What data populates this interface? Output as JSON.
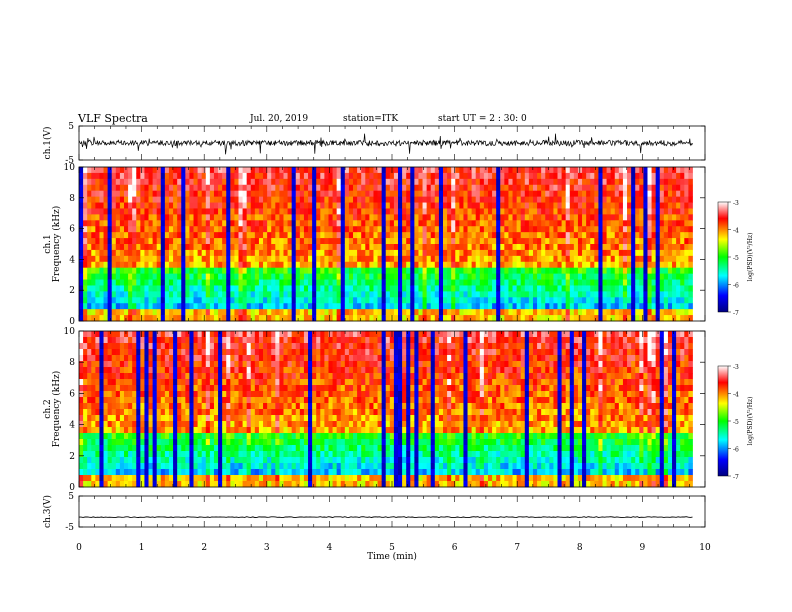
{
  "header": {
    "title": "VLF Spectra",
    "date": "Jul. 20, 2019",
    "station": "station=ITK",
    "start": "start UT = 2 : 30: 0"
  },
  "chart_data": [
    {
      "type": "line",
      "name": "ch1-waveform",
      "ylabel": "ch.1(V)",
      "ylim": [
        -5,
        5
      ],
      "yticks": [
        "5",
        "-5"
      ],
      "xlim": [
        0,
        10
      ],
      "baseline": 0,
      "data_extent_min": 9.8
    },
    {
      "type": "heatmap",
      "name": "ch1-spectrogram",
      "ylabel": "ch.1\nFrequency (kHz)",
      "ylabel_line1": "ch.1",
      "ylabel_line2": "Frequency (kHz)",
      "ylim": [
        0,
        10
      ],
      "yticks": [
        "0",
        "2",
        "4",
        "6",
        "8",
        "10"
      ],
      "xlim": [
        0,
        10
      ],
      "colorbar": {
        "label": "log(PSD)(V²/Hz)",
        "range": [
          -7,
          -3
        ],
        "ticks": [
          "-3",
          "-4",
          "-5",
          "-6",
          "-7"
        ],
        "colors": [
          "#000080",
          "#0000ff",
          "#00ffff",
          "#00ff00",
          "#ffff00",
          "#ff0000",
          "#ffffff"
        ]
      }
    },
    {
      "type": "heatmap",
      "name": "ch2-spectrogram",
      "ylabel_line1": "ch.2",
      "ylabel_line2": "Frequency (kHz)",
      "ylim": [
        0,
        10
      ],
      "yticks": [
        "0",
        "2",
        "4",
        "6",
        "8",
        "10"
      ],
      "xlim": [
        0,
        10
      ],
      "colorbar": {
        "label": "log(PSD)(V²/Hz)",
        "range": [
          -7,
          -3
        ],
        "ticks": [
          "-3",
          "-4",
          "-5",
          "-6",
          "-7"
        ]
      }
    },
    {
      "type": "line",
      "name": "ch3-waveform",
      "ylabel": "ch.3(V)",
      "ylim": [
        -5,
        5
      ],
      "yticks": [
        "5",
        "-5"
      ],
      "xlim": [
        0,
        10
      ],
      "baseline": -1.8,
      "data_extent_min": 9.8
    }
  ],
  "xaxis": {
    "label": "Time (min)",
    "ticks": [
      "0",
      "1",
      "2",
      "3",
      "4",
      "5",
      "6",
      "7",
      "8",
      "9",
      "10"
    ]
  }
}
